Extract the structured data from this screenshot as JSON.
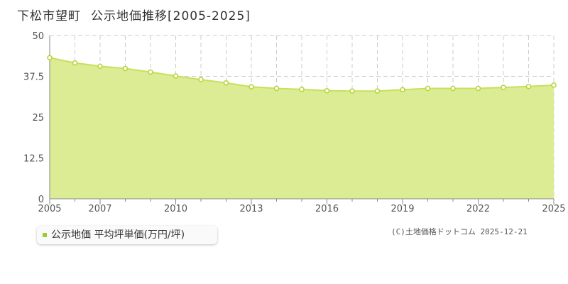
{
  "header": {
    "location": "下松市望町",
    "subtitle": "公示地価推移[2005-2025]"
  },
  "legend": {
    "label": "公示地価 平均坪単価(万円/坪)",
    "color": "#9acd32"
  },
  "copyright": "(C)土地価格ドットコム 2025-12-21",
  "chart_data": {
    "type": "area",
    "x": [
      2005,
      2006,
      2007,
      2008,
      2009,
      2010,
      2011,
      2012,
      2013,
      2014,
      2015,
      2016,
      2017,
      2018,
      2019,
      2020,
      2021,
      2022,
      2023,
      2024,
      2025
    ],
    "series": [
      {
        "name": "公示地価 平均坪単価(万円/坪)",
        "values": [
          43.2,
          41.6,
          40.6,
          39.9,
          38.8,
          37.6,
          36.5,
          35.5,
          34.3,
          33.8,
          33.5,
          33.1,
          33.0,
          33.0,
          33.4,
          33.8,
          33.8,
          33.8,
          34.1,
          34.4,
          34.8
        ]
      }
    ],
    "ylim": [
      0,
      50
    ],
    "yticks": [
      "0",
      "12.5",
      "25",
      "37.5",
      "50"
    ],
    "xticks_major": [
      "2005",
      "2007",
      "2010",
      "2013",
      "2016",
      "2019",
      "2022",
      "2025"
    ],
    "fill_color": "#dcec94",
    "line_color": "#c8e05a",
    "grid": true,
    "legend_position": "bottom-left"
  }
}
